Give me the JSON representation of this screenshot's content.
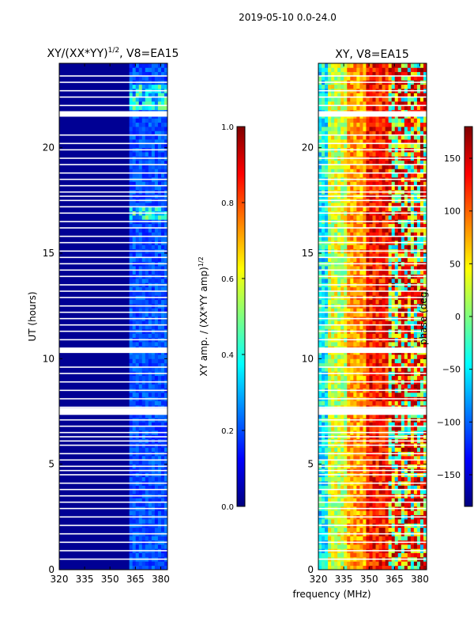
{
  "figure_title": "2019-05-10 0.0-24.0",
  "colors": {
    "jet": [
      "#00007f",
      "#0000ff",
      "#007fff",
      "#00ffff",
      "#7fff7f",
      "#ffff00",
      "#ff7f00",
      "#ff0000",
      "#7f0000"
    ]
  },
  "chart_data": [
    {
      "type": "heatmap",
      "title": "XY/(XX*YY)",
      "title_sup": "1/2",
      "title_suffix": ", V8=EA15",
      "xlabel": "",
      "ylabel": "UT (hours)",
      "xlim": [
        320,
        384
      ],
      "ylim": [
        0,
        24
      ],
      "x_ticks": [
        320,
        335,
        350,
        365,
        380
      ],
      "y_ticks": [
        0,
        5,
        10,
        15,
        20
      ],
      "colorbar": {
        "label": "XY amp. / (XX*YY amp)",
        "label_sup": "1/2",
        "range": [
          0.0,
          1.0
        ],
        "ticks": [
          "0.0",
          "0.2",
          "0.4",
          "0.6",
          "0.8",
          "1.0"
        ]
      },
      "gap_hours": [
        0.5,
        0.9,
        1.3,
        1.7,
        2.1,
        2.5,
        2.9,
        3.2,
        3.5,
        3.8,
        4.1,
        4.5,
        4.7,
        4.9,
        5.2,
        5.5,
        5.9,
        6.1,
        6.3,
        6.5,
        6.8,
        7.1,
        7.45,
        7.55,
        7.7,
        8.1,
        8.5,
        8.9,
        9.3,
        9.6,
        10.3,
        10.4,
        10.5,
        10.9,
        11.3,
        11.6,
        11.9,
        12.2,
        12.5,
        12.9,
        13.2,
        13.5,
        13.9,
        14.2,
        14.5,
        14.8,
        15.1,
        15.5,
        15.8,
        16.2,
        16.5,
        16.9,
        17.2,
        17.5,
        17.7,
        17.9,
        18.2,
        18.5,
        18.8,
        19.2,
        19.5,
        19.9,
        20.2,
        20.6,
        21.5,
        21.6,
        21.7,
        22.0,
        22.4,
        22.7,
        23.1,
        23.4
      ]
    },
    {
      "type": "heatmap",
      "title": "XY, V8=EA15",
      "xlabel": "frequency (MHz)",
      "ylabel": "",
      "xlim": [
        320,
        384
      ],
      "ylim": [
        0,
        24
      ],
      "x_ticks": [
        320,
        335,
        350,
        365,
        380
      ],
      "y_ticks": [
        0,
        5,
        10,
        15,
        20
      ],
      "colorbar": {
        "label": "phase (deg)",
        "range": [
          -180,
          180
        ],
        "ticks": [
          "150",
          "100",
          "50",
          "0",
          "−50",
          "−100",
          "−150"
        ]
      }
    }
  ]
}
